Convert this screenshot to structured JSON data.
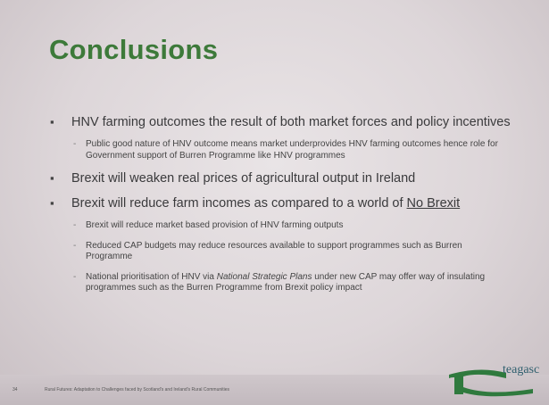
{
  "slide": {
    "title": "Conclusions",
    "bullets": [
      {
        "parts": [
          {
            "text": "HNV farming outcomes the result of both market forces and policy incentives"
          }
        ],
        "sub": [
          {
            "parts": [
              {
                "text": "Public good nature of HNV outcome means market underprovides HNV farming outcomes hence role for Government support of Burren Programme like HNV programmes"
              }
            ]
          }
        ]
      },
      {
        "parts": [
          {
            "text": "Brexit will weaken real prices of agricultural output in Ireland"
          }
        ],
        "sub": []
      },
      {
        "parts": [
          {
            "text": "Brexit will reduce farm incomes as compared to a world of "
          },
          {
            "text": "No Brexit",
            "style": "underline"
          }
        ],
        "sub": [
          {
            "parts": [
              {
                "text": "Brexit will reduce market based provision of HNV farming outputs"
              }
            ]
          },
          {
            "parts": [
              {
                "text": "Reduced CAP budgets may reduce resources available to support programmes such as Burren Programme"
              }
            ]
          },
          {
            "parts": [
              {
                "text": "National prioritisation of HNV via "
              },
              {
                "text": "National Strategic Plans",
                "style": "italic"
              },
              {
                "text": " under new CAP may offer way of insulating programmes such as the Burren Programme from Brexit policy impact"
              }
            ]
          }
        ]
      }
    ],
    "footer": {
      "page": "34",
      "text": "Rural Futures: Adaptation to Challenges faced by Scotland's and Ireland's Rural Communities"
    },
    "logo": "teagasc"
  }
}
